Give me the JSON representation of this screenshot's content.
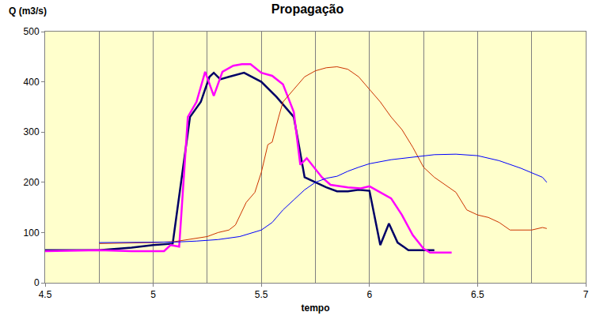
{
  "chart_data": {
    "type": "line",
    "title": "Propagação",
    "x_label": "tempo",
    "y_label": "Q (m3/s)",
    "xlim": [
      4.5,
      7
    ],
    "xticks": [
      4.5,
      5,
      5.5,
      6,
      6.5,
      7
    ],
    "ylim": [
      0,
      500
    ],
    "yticks": [
      0,
      100,
      200,
      300,
      400,
      500
    ],
    "grid": true,
    "series": [
      {
        "color": "#000066",
        "line_style": "thick",
        "x": [
          4.5,
          4.75,
          4.9,
          5.0,
          5.09,
          5.13,
          5.17,
          5.22,
          5.26,
          5.28,
          5.31,
          5.35,
          5.42,
          5.5,
          5.57,
          5.65,
          5.7,
          5.8,
          5.85,
          5.9,
          5.95,
          6.0,
          6.05,
          6.09,
          6.13,
          6.18,
          6.3
        ],
        "values": [
          65,
          65,
          70,
          75,
          78,
          200,
          330,
          360,
          410,
          418,
          405,
          410,
          418,
          400,
          370,
          330,
          210,
          190,
          182,
          182,
          185,
          183,
          75,
          118,
          80,
          65,
          65
        ]
      },
      {
        "color": "#FF00FF",
        "line_style": "thick",
        "x": [
          4.5,
          4.75,
          4.9,
          5.0,
          5.05,
          5.08,
          5.12,
          5.16,
          5.2,
          5.24,
          5.28,
          5.32,
          5.37,
          5.41,
          5.45,
          5.5,
          5.55,
          5.6,
          5.65,
          5.68,
          5.71,
          5.78,
          5.82,
          5.9,
          5.96,
          6.0,
          6.05,
          6.1,
          6.15,
          6.2,
          6.25,
          6.28,
          6.38
        ],
        "values": [
          63,
          65,
          63,
          63,
          63,
          75,
          72,
          330,
          360,
          420,
          372,
          420,
          432,
          435,
          435,
          418,
          412,
          395,
          340,
          235,
          248,
          210,
          195,
          190,
          188,
          192,
          180,
          168,
          135,
          95,
          68,
          60,
          60
        ]
      },
      {
        "color": "#CC3300",
        "line_style": "thin",
        "x": [
          4.75,
          5.0,
          5.1,
          5.2,
          5.25,
          5.3,
          5.35,
          5.38,
          5.43,
          5.47,
          5.5,
          5.53,
          5.55,
          5.58,
          5.6,
          5.65,
          5.7,
          5.75,
          5.8,
          5.85,
          5.9,
          5.95,
          6.0,
          6.05,
          6.1,
          6.15,
          6.2,
          6.25,
          6.3,
          6.4,
          6.45,
          6.5,
          6.55,
          6.6,
          6.65,
          6.7,
          6.75,
          6.8,
          6.82
        ],
        "values": [
          78,
          80,
          82,
          88,
          92,
          100,
          105,
          115,
          160,
          180,
          220,
          275,
          280,
          330,
          360,
          385,
          410,
          422,
          428,
          430,
          425,
          410,
          385,
          360,
          330,
          305,
          270,
          230,
          210,
          180,
          145,
          135,
          130,
          120,
          105,
          105,
          105,
          110,
          108
        ]
      },
      {
        "color": "#0000FF",
        "line_style": "thin",
        "x": [
          4.75,
          5.0,
          5.1,
          5.2,
          5.3,
          5.4,
          5.5,
          5.55,
          5.6,
          5.65,
          5.7,
          5.75,
          5.8,
          5.85,
          5.9,
          5.95,
          6.0,
          6.1,
          6.2,
          6.3,
          6.4,
          6.5,
          6.6,
          6.7,
          6.8,
          6.82
        ],
        "values": [
          80,
          80,
          81,
          83,
          86,
          92,
          105,
          120,
          145,
          165,
          185,
          200,
          208,
          212,
          222,
          230,
          237,
          245,
          250,
          255,
          256,
          253,
          243,
          228,
          210,
          200
        ]
      }
    ]
  }
}
